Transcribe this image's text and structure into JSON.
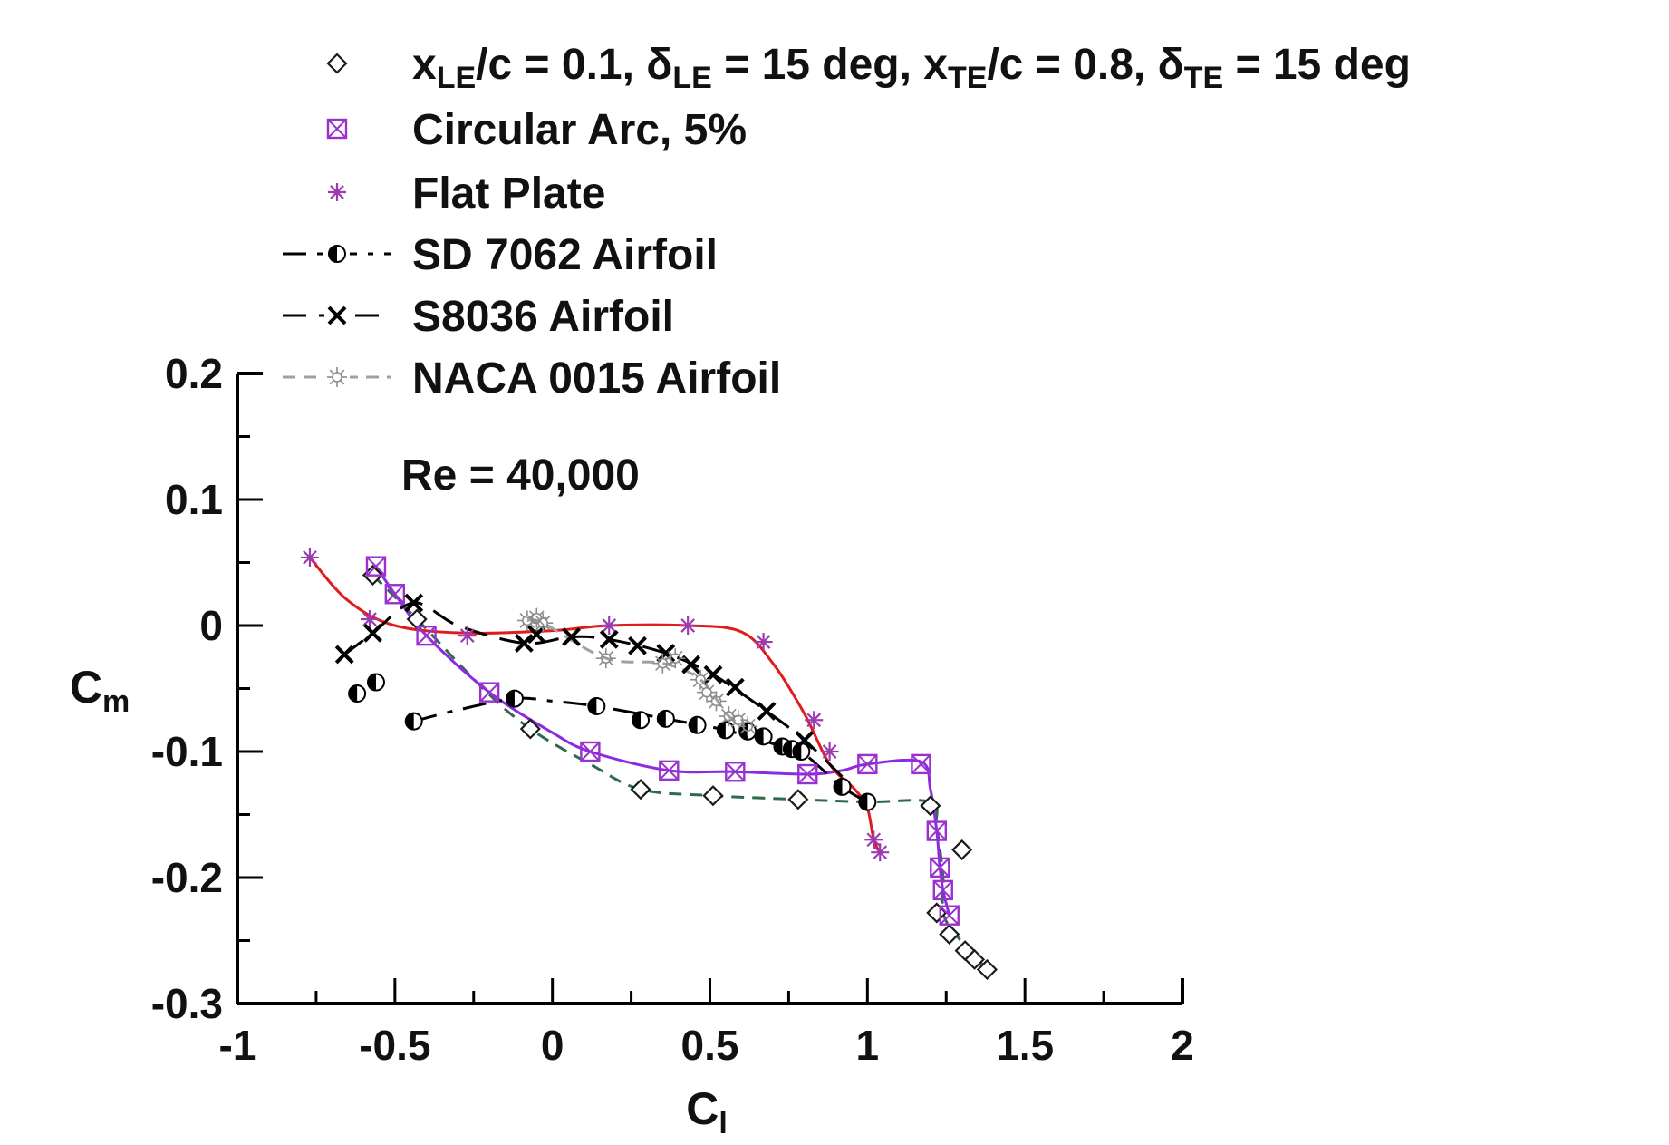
{
  "chart_data": {
    "type": "scatter",
    "title": "",
    "annotation": "Re = 40,000",
    "xlabel": {
      "main": "C",
      "sub": "l"
    },
    "ylabel": {
      "main": "C",
      "sub": "m"
    },
    "xlim": [
      -1,
      2
    ],
    "ylim": [
      -0.3,
      0.2
    ],
    "xticks": [
      -1,
      -0.5,
      0,
      0.5,
      1,
      1.5,
      2
    ],
    "xtick_labels": [
      "-1",
      "-0.5",
      "0",
      "0.5",
      "1",
      "1.5",
      "2"
    ],
    "yticks": [
      -0.3,
      -0.2,
      -0.1,
      0,
      0.1,
      0.2
    ],
    "ytick_labels": [
      "-0.3",
      "-0.2",
      "-0.1",
      "0",
      "0.1",
      "0.2"
    ],
    "legend_position": "top-left",
    "series": [
      {
        "name": "xLE/c = 0.1, δLE = 15 deg, xTE/c = 0.8, δTE = 15 deg",
        "legend_parts": [
          {
            "t": "x",
            "sub": false
          },
          {
            "t": "LE",
            "sub": true
          },
          {
            "t": "/c = 0.1, ",
            "sub": false
          },
          {
            "t": "δ",
            "sub": false
          },
          {
            "t": "LE",
            "sub": true
          },
          {
            "t": " = 15 deg, x",
            "sub": false
          },
          {
            "t": "TE",
            "sub": true
          },
          {
            "t": "/c = 0.8, ",
            "sub": false
          },
          {
            "t": "δ",
            "sub": false
          },
          {
            "t": "TE",
            "sub": true
          },
          {
            "t": " = 15 deg",
            "sub": false
          }
        ],
        "marker": "diamond",
        "color": "#1a1a1a",
        "line_color": "#2e6b4a",
        "line_style": "dashed",
        "points": [
          [
            -0.57,
            0.04
          ],
          [
            -0.43,
            0.005
          ],
          [
            -0.07,
            -0.082
          ],
          [
            0.28,
            -0.13
          ],
          [
            0.51,
            -0.135
          ],
          [
            0.78,
            -0.138
          ],
          [
            1.2,
            -0.143
          ],
          [
            1.22,
            -0.228
          ],
          [
            1.26,
            -0.245
          ],
          [
            1.3,
            -0.178
          ],
          [
            1.31,
            -0.258
          ],
          [
            1.34,
            -0.265
          ],
          [
            1.38,
            -0.273
          ]
        ],
        "curve": [
          [
            -0.57,
            0.04
          ],
          [
            -0.43,
            0.005
          ],
          [
            -0.22,
            -0.05
          ],
          [
            -0.07,
            -0.082
          ],
          [
            0.12,
            -0.11
          ],
          [
            0.28,
            -0.13
          ],
          [
            0.51,
            -0.135
          ],
          [
            0.78,
            -0.138
          ],
          [
            1.0,
            -0.14
          ],
          [
            1.2,
            -0.14
          ],
          [
            1.22,
            -0.16
          ],
          [
            1.24,
            -0.2
          ],
          [
            1.24,
            -0.228
          ],
          [
            1.28,
            -0.245
          ],
          [
            1.34,
            -0.262
          ],
          [
            1.38,
            -0.273
          ]
        ]
      },
      {
        "name": "Circular Arc, 5%",
        "marker": "box-x",
        "color": "#9932cc",
        "line_color": "#8a2be2",
        "line_style": "solid",
        "points": [
          [
            -0.56,
            0.047
          ],
          [
            -0.5,
            0.025
          ],
          [
            -0.4,
            -0.008
          ],
          [
            -0.2,
            -0.053
          ],
          [
            0.12,
            -0.1
          ],
          [
            0.37,
            -0.115
          ],
          [
            0.58,
            -0.116
          ],
          [
            0.81,
            -0.118
          ],
          [
            1.0,
            -0.11
          ],
          [
            1.17,
            -0.11
          ],
          [
            1.22,
            -0.163
          ],
          [
            1.23,
            -0.192
          ],
          [
            1.24,
            -0.21
          ],
          [
            1.26,
            -0.23
          ]
        ],
        "curve": [
          [
            -0.56,
            0.047
          ],
          [
            -0.5,
            0.025
          ],
          [
            -0.4,
            -0.008
          ],
          [
            -0.2,
            -0.053
          ],
          [
            0.0,
            -0.085
          ],
          [
            0.12,
            -0.1
          ],
          [
            0.37,
            -0.115
          ],
          [
            0.58,
            -0.116
          ],
          [
            0.81,
            -0.118
          ],
          [
            0.92,
            -0.115
          ],
          [
            1.0,
            -0.11
          ],
          [
            1.17,
            -0.108
          ],
          [
            1.2,
            -0.13
          ],
          [
            1.22,
            -0.163
          ],
          [
            1.23,
            -0.192
          ],
          [
            1.24,
            -0.21
          ],
          [
            1.26,
            -0.23
          ]
        ]
      },
      {
        "name": "Flat Plate",
        "marker": "asterisk",
        "color": "#9b3bb0",
        "line_color": "#e01b1b",
        "line_style": "solid",
        "points": [
          [
            -0.77,
            0.054
          ],
          [
            -0.58,
            0.005
          ],
          [
            -0.27,
            -0.008
          ],
          [
            0.18,
            0.0
          ],
          [
            0.43,
            0.0
          ],
          [
            0.67,
            -0.013
          ],
          [
            0.83,
            -0.075
          ],
          [
            0.88,
            -0.1
          ],
          [
            1.0,
            -0.14
          ],
          [
            1.02,
            -0.17
          ],
          [
            1.04,
            -0.18
          ]
        ],
        "curve": [
          [
            -0.77,
            0.054
          ],
          [
            -0.65,
            0.02
          ],
          [
            -0.5,
            0.0
          ],
          [
            -0.27,
            -0.006
          ],
          [
            0.0,
            -0.004
          ],
          [
            0.18,
            0.0
          ],
          [
            0.43,
            0.0
          ],
          [
            0.6,
            -0.005
          ],
          [
            0.7,
            -0.03
          ],
          [
            0.8,
            -0.07
          ],
          [
            0.88,
            -0.11
          ],
          [
            0.96,
            -0.13
          ],
          [
            1.0,
            -0.145
          ],
          [
            1.02,
            -0.17
          ],
          [
            1.04,
            -0.18
          ]
        ]
      },
      {
        "name": "SD 7062 Airfoil",
        "marker": "half-circle",
        "color": "#000000",
        "line_color": "#000000",
        "line_style": "dash-dot",
        "points": [
          [
            -0.62,
            -0.054
          ],
          [
            -0.56,
            -0.045
          ],
          [
            -0.44,
            -0.076
          ],
          [
            -0.12,
            -0.058
          ],
          [
            0.14,
            -0.064
          ],
          [
            0.28,
            -0.075
          ],
          [
            0.36,
            -0.074
          ],
          [
            0.46,
            -0.079
          ],
          [
            0.55,
            -0.083
          ],
          [
            0.62,
            -0.084
          ],
          [
            0.67,
            -0.088
          ],
          [
            0.73,
            -0.096
          ],
          [
            0.76,
            -0.098
          ],
          [
            0.79,
            -0.1
          ],
          [
            0.92,
            -0.128
          ],
          [
            1.0,
            -0.14
          ]
        ],
        "curve": [
          [
            -0.44,
            -0.076
          ],
          [
            -0.3,
            -0.067
          ],
          [
            -0.12,
            -0.058
          ],
          [
            0.0,
            -0.06
          ],
          [
            0.14,
            -0.064
          ],
          [
            0.36,
            -0.074
          ],
          [
            0.55,
            -0.083
          ],
          [
            0.73,
            -0.096
          ],
          [
            0.79,
            -0.1
          ],
          [
            0.92,
            -0.128
          ],
          [
            1.0,
            -0.14
          ]
        ]
      },
      {
        "name": "S8036 Airfoil",
        "marker": "cross",
        "color": "#000000",
        "line_color": "#000000",
        "line_style": "long-dash",
        "points": [
          [
            -0.66,
            -0.023
          ],
          [
            -0.57,
            -0.006
          ],
          [
            -0.44,
            0.018
          ],
          [
            -0.09,
            -0.014
          ],
          [
            -0.05,
            -0.007
          ],
          [
            0.06,
            -0.009
          ],
          [
            0.18,
            -0.011
          ],
          [
            0.27,
            -0.016
          ],
          [
            0.36,
            -0.022
          ],
          [
            0.44,
            -0.031
          ],
          [
            0.51,
            -0.039
          ],
          [
            0.58,
            -0.049
          ],
          [
            0.68,
            -0.068
          ],
          [
            0.8,
            -0.091
          ]
        ],
        "curve": [
          [
            -0.66,
            -0.023
          ],
          [
            -0.57,
            -0.006
          ],
          [
            -0.44,
            0.018
          ],
          [
            -0.3,
            0.0
          ],
          [
            -0.09,
            -0.014
          ],
          [
            0.06,
            -0.009
          ],
          [
            0.18,
            -0.011
          ],
          [
            0.36,
            -0.022
          ],
          [
            0.51,
            -0.039
          ],
          [
            0.68,
            -0.068
          ],
          [
            0.8,
            -0.091
          ],
          [
            0.92,
            -0.12
          ]
        ]
      },
      {
        "name": "NACA 0015 Airfoil",
        "marker": "star-burst",
        "color": "#8c8c8c",
        "line_color": "#a0a0a0",
        "line_style": "dashed",
        "points": [
          [
            -0.08,
            0.004
          ],
          [
            -0.05,
            0.006
          ],
          [
            -0.03,
            0.002
          ],
          [
            0.17,
            -0.026
          ],
          [
            0.35,
            -0.03
          ],
          [
            0.39,
            -0.026
          ],
          [
            0.47,
            -0.043
          ],
          [
            0.49,
            -0.053
          ],
          [
            0.52,
            -0.06
          ],
          [
            0.56,
            -0.072
          ],
          [
            0.59,
            -0.075
          ],
          [
            0.62,
            -0.08
          ]
        ],
        "curve": [
          [
            -0.08,
            0.004
          ],
          [
            -0.03,
            0.002
          ],
          [
            0.17,
            -0.026
          ],
          [
            0.35,
            -0.03
          ],
          [
            0.47,
            -0.043
          ],
          [
            0.56,
            -0.072
          ],
          [
            0.62,
            -0.08
          ]
        ]
      }
    ]
  }
}
